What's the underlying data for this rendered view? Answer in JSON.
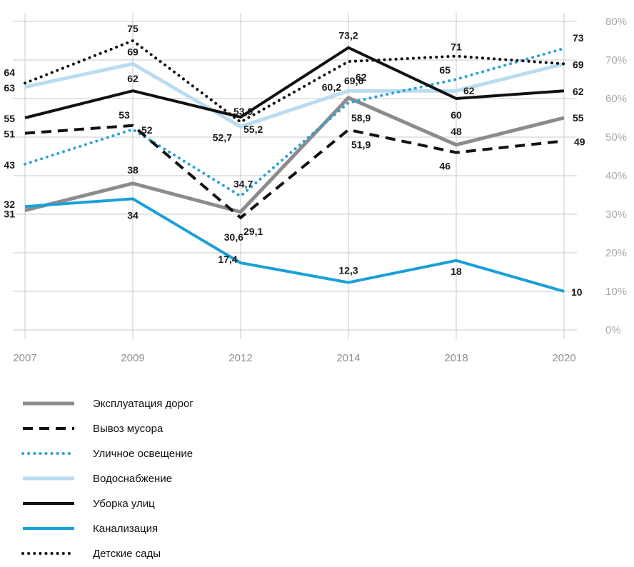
{
  "chart_data": {
    "type": "line",
    "title": "",
    "xlabel": "",
    "ylabel": "",
    "categories": [
      "2007",
      "2009",
      "2012",
      "2014",
      "2018",
      "2020"
    ],
    "ylim": [
      0,
      80
    ],
    "y_ticks": [
      "0%",
      "10%",
      "20%",
      "30%",
      "40%",
      "50%",
      "60%",
      "70%",
      "80%"
    ],
    "y_axis_side": "right",
    "grid": true,
    "legend_position": "bottom-left",
    "series": [
      {
        "name": "Эксплуатация дорог",
        "values": [
          31,
          38,
          30.6,
          60.2,
          48,
          55
        ],
        "labels": [
          "31",
          "38",
          "30,6",
          "60,2",
          "48",
          "55"
        ],
        "color": "#8c8c8c",
        "style": "solid-thick"
      },
      {
        "name": "Вывоз мусора",
        "values": [
          51,
          53,
          29.1,
          51.9,
          46,
          49
        ],
        "labels": [
          "51",
          "53",
          "29,1",
          "51,9",
          "46",
          "49"
        ],
        "color": "#111111",
        "style": "dashed"
      },
      {
        "name": "Уличное освещение",
        "values": [
          43,
          52,
          34.7,
          58.9,
          65,
          73
        ],
        "labels": [
          "43",
          "52",
          "34,7",
          "58,9",
          "65",
          "73"
        ],
        "color": "#2aa2d6",
        "style": "dotted"
      },
      {
        "name": "Водоснабжение",
        "values": [
          63,
          69,
          52.7,
          62,
          62,
          69
        ],
        "labels": [
          "63",
          "69",
          "52,7",
          "62",
          "62",
          "69"
        ],
        "color": "#b9dcef",
        "style": "solid-thick"
      },
      {
        "name": "Уборка улиц",
        "values": [
          55,
          62,
          55.2,
          73.2,
          60,
          62
        ],
        "labels": [
          "55",
          "62",
          "55,2",
          "73,2",
          "60",
          "62"
        ],
        "color": "#111111",
        "style": "solid"
      },
      {
        "name": "Канализация",
        "values": [
          32,
          34,
          17.4,
          12.3,
          18,
          10
        ],
        "labels": [
          "32",
          "34",
          "17,4",
          "12,3",
          "18",
          "10"
        ],
        "color": "#1aa0d8",
        "style": "solid"
      },
      {
        "name": "Детские сады",
        "values": [
          64,
          75,
          53.9,
          69.6,
          71,
          69
        ],
        "labels": [
          "64",
          "75",
          "53,9",
          "69,6",
          "71",
          ""
        ],
        "color": "#111111",
        "style": "dotted-small"
      }
    ]
  }
}
